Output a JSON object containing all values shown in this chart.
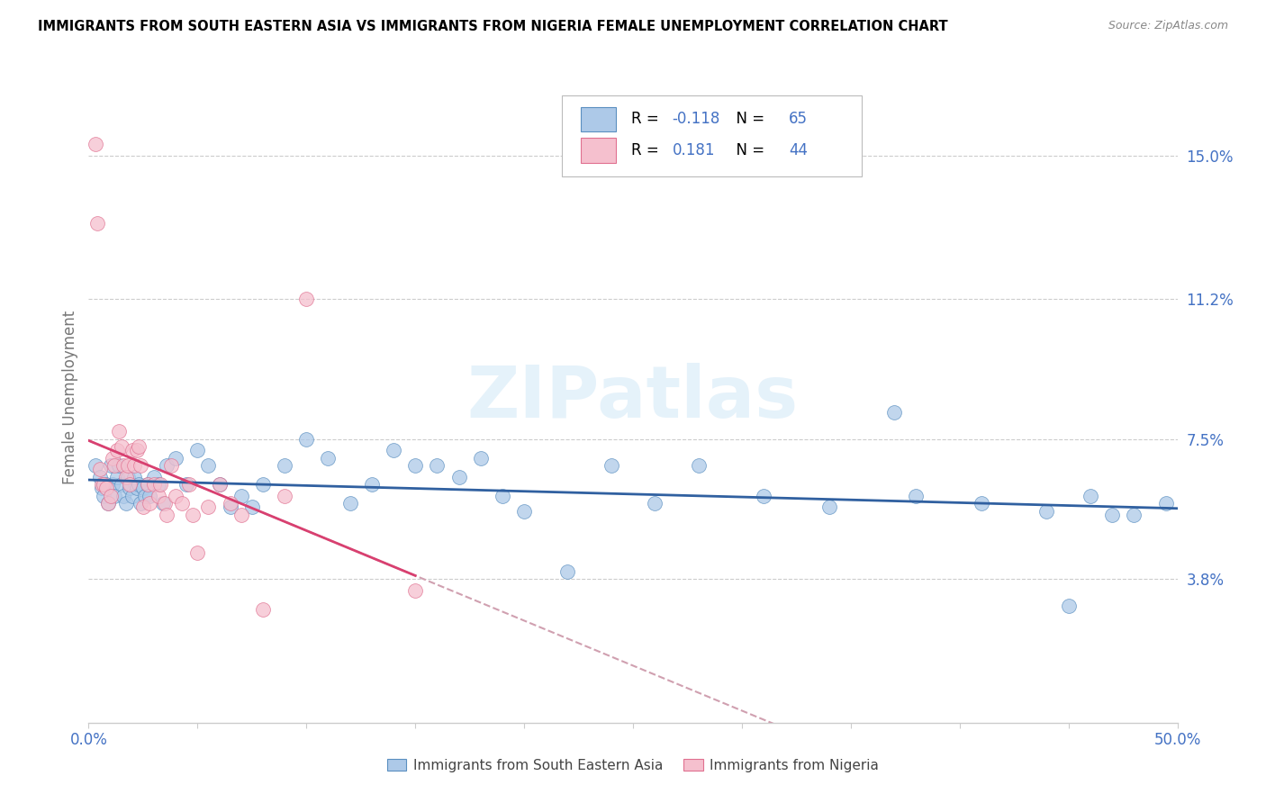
{
  "title": "IMMIGRANTS FROM SOUTH EASTERN ASIA VS IMMIGRANTS FROM NIGERIA FEMALE UNEMPLOYMENT CORRELATION CHART",
  "source": "Source: ZipAtlas.com",
  "ylabel": "Female Unemployment",
  "xlim": [
    0.0,
    0.5
  ],
  "ylim": [
    0.0,
    0.172
  ],
  "yticks_right": [
    0.038,
    0.075,
    0.112,
    0.15
  ],
  "yticklabels_right": [
    "3.8%",
    "7.5%",
    "11.2%",
    "15.0%"
  ],
  "blue_R": -0.118,
  "blue_N": 65,
  "pink_R": 0.181,
  "pink_N": 44,
  "blue_color": "#adc9e8",
  "blue_edge_color": "#5a8fc0",
  "blue_line_color": "#3060a0",
  "pink_color": "#f5c0ce",
  "pink_edge_color": "#e07090",
  "pink_line_color": "#d84070",
  "pink_dash_color": "#d0a0b0",
  "watermark": "ZIPatlas",
  "blue_scatter_x": [
    0.003,
    0.005,
    0.006,
    0.007,
    0.008,
    0.009,
    0.01,
    0.011,
    0.012,
    0.013,
    0.014,
    0.015,
    0.016,
    0.017,
    0.018,
    0.019,
    0.02,
    0.021,
    0.022,
    0.023,
    0.024,
    0.025,
    0.026,
    0.027,
    0.028,
    0.03,
    0.032,
    0.034,
    0.036,
    0.04,
    0.045,
    0.05,
    0.055,
    0.06,
    0.065,
    0.07,
    0.075,
    0.08,
    0.09,
    0.1,
    0.11,
    0.12,
    0.13,
    0.14,
    0.15,
    0.16,
    0.17,
    0.18,
    0.19,
    0.2,
    0.22,
    0.24,
    0.26,
    0.28,
    0.31,
    0.34,
    0.37,
    0.38,
    0.41,
    0.44,
    0.45,
    0.46,
    0.47,
    0.48,
    0.495
  ],
  "blue_scatter_y": [
    0.068,
    0.065,
    0.062,
    0.06,
    0.063,
    0.058,
    0.068,
    0.063,
    0.06,
    0.065,
    0.068,
    0.063,
    0.06,
    0.058,
    0.065,
    0.062,
    0.06,
    0.065,
    0.062,
    0.063,
    0.058,
    0.062,
    0.06,
    0.063,
    0.06,
    0.065,
    0.063,
    0.058,
    0.068,
    0.07,
    0.063,
    0.072,
    0.068,
    0.063,
    0.057,
    0.06,
    0.057,
    0.063,
    0.068,
    0.075,
    0.07,
    0.058,
    0.063,
    0.072,
    0.068,
    0.068,
    0.065,
    0.07,
    0.06,
    0.056,
    0.04,
    0.068,
    0.058,
    0.068,
    0.06,
    0.057,
    0.082,
    0.06,
    0.058,
    0.056,
    0.031,
    0.06,
    0.055,
    0.055,
    0.058
  ],
  "pink_scatter_x": [
    0.003,
    0.004,
    0.005,
    0.006,
    0.007,
    0.008,
    0.009,
    0.01,
    0.011,
    0.012,
    0.013,
    0.014,
    0.015,
    0.016,
    0.017,
    0.018,
    0.019,
    0.02,
    0.021,
    0.022,
    0.023,
    0.024,
    0.025,
    0.027,
    0.028,
    0.03,
    0.032,
    0.033,
    0.035,
    0.036,
    0.038,
    0.04,
    0.043,
    0.046,
    0.048,
    0.05,
    0.055,
    0.06,
    0.065,
    0.07,
    0.08,
    0.09,
    0.1,
    0.15
  ],
  "pink_scatter_y": [
    0.153,
    0.132,
    0.067,
    0.063,
    0.063,
    0.062,
    0.058,
    0.06,
    0.07,
    0.068,
    0.072,
    0.077,
    0.073,
    0.068,
    0.065,
    0.068,
    0.063,
    0.072,
    0.068,
    0.072,
    0.073,
    0.068,
    0.057,
    0.063,
    0.058,
    0.063,
    0.06,
    0.063,
    0.058,
    0.055,
    0.068,
    0.06,
    0.058,
    0.063,
    0.055,
    0.045,
    0.057,
    0.063,
    0.058,
    0.055,
    0.03,
    0.06,
    0.112,
    0.035
  ]
}
